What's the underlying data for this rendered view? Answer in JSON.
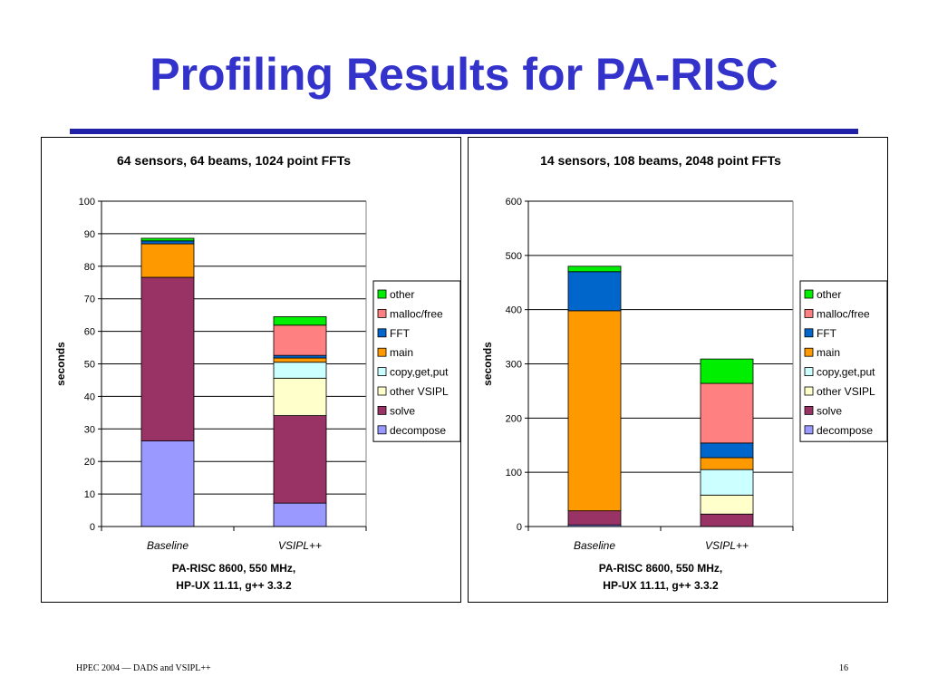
{
  "slide": {
    "title": "Profiling Results for PA-RISC",
    "footer_left": "HPEC 2004 — DADS and VSIPL++",
    "page_number": "16"
  },
  "chart_data": [
    {
      "type": "bar",
      "stacked": true,
      "title": "64 sensors, 64 beams, 1024 point FFTs",
      "ylabel": "seconds",
      "xlabel_lines": [
        "PA-RISC 8600, 550 MHz,",
        "HP-UX 11.11, g++ 3.3.2"
      ],
      "categories": [
        "Baseline",
        "VSIPL++"
      ],
      "ylim": [
        0,
        100
      ],
      "yticks": [
        0,
        10,
        20,
        30,
        40,
        50,
        60,
        70,
        80,
        90,
        100
      ],
      "legend_position": "right",
      "series": [
        {
          "name": "decompose",
          "color": "#9999ff",
          "values": [
            26.3,
            7.2
          ]
        },
        {
          "name": "solve",
          "color": "#993366",
          "values": [
            50.3,
            26.9
          ]
        },
        {
          "name": "other VSIPL",
          "color": "#ffffcc",
          "values": [
            0,
            11.5
          ]
        },
        {
          "name": "copy,get,put",
          "color": "#ccffff",
          "values": [
            0,
            4.9
          ]
        },
        {
          "name": "main",
          "color": "#ff9900",
          "values": [
            10.3,
            1.3
          ]
        },
        {
          "name": "FFT",
          "color": "#0066cc",
          "values": [
            0.9,
            0.8
          ]
        },
        {
          "name": "malloc/free",
          "color": "#ff8080",
          "values": [
            0,
            9.3
          ]
        },
        {
          "name": "other",
          "color": "#00ee00",
          "values": [
            0.8,
            2.6
          ]
        }
      ]
    },
    {
      "type": "bar",
      "stacked": true,
      "title": "14 sensors, 108 beams, 2048 point FFTs",
      "ylabel": "seconds",
      "xlabel_lines": [
        "PA-RISC 8600, 550 MHz,",
        "HP-UX 11.11, g++ 3.3.2"
      ],
      "categories": [
        "Baseline",
        "VSIPL++"
      ],
      "ylim": [
        0,
        600
      ],
      "yticks": [
        0,
        100,
        200,
        300,
        400,
        500,
        600
      ],
      "legend_position": "right",
      "series": [
        {
          "name": "decompose",
          "color": "#9999ff",
          "values": [
            3,
            0
          ]
        },
        {
          "name": "solve",
          "color": "#993366",
          "values": [
            26,
            23
          ]
        },
        {
          "name": "other VSIPL",
          "color": "#ffffcc",
          "values": [
            0,
            35
          ]
        },
        {
          "name": "copy,get,put",
          "color": "#ccffff",
          "values": [
            0,
            47
          ]
        },
        {
          "name": "main",
          "color": "#ff9900",
          "values": [
            369,
            22
          ]
        },
        {
          "name": "FFT",
          "color": "#0066cc",
          "values": [
            72,
            27
          ]
        },
        {
          "name": "malloc/free",
          "color": "#ff8080",
          "values": [
            0,
            110
          ]
        },
        {
          "name": "other",
          "color": "#00ee00",
          "values": [
            10,
            45
          ]
        }
      ]
    }
  ]
}
